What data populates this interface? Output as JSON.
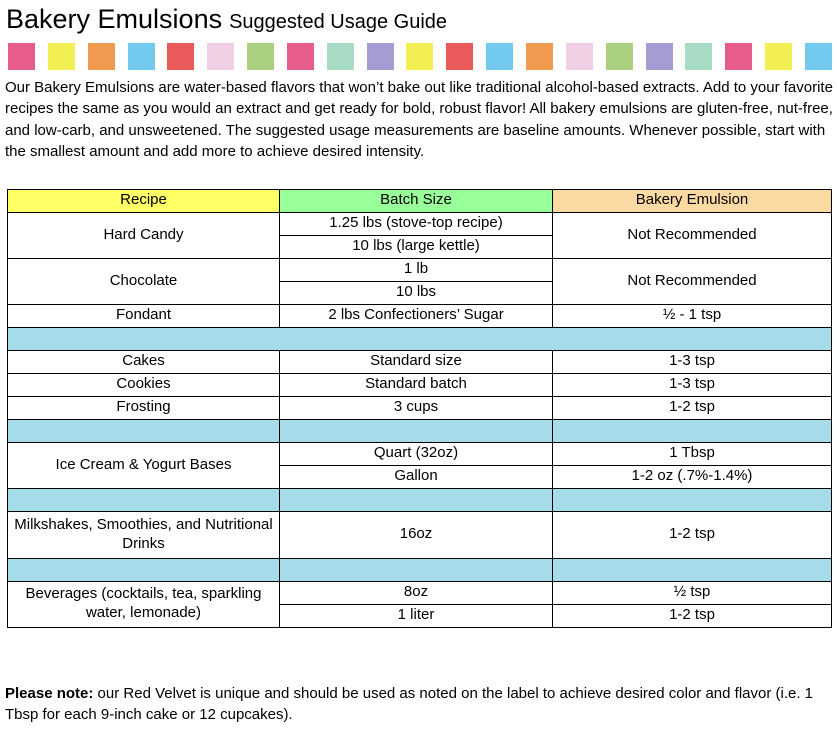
{
  "title": {
    "main": "Bakery Emulsions",
    "sub": "Suggested Usage Guide"
  },
  "stripe": {
    "colors": [
      "#E85C8C",
      "#F2EF55",
      "#F09A50",
      "#74CAEE",
      "#EB5A5B",
      "#F0D0E4",
      "#ABD080",
      "#E85C8C",
      "#A9DCC5",
      "#A49CD2",
      "#F2EF55",
      "#EB5A5B",
      "#74CAEE",
      "#F09A50",
      "#F0D0E4",
      "#ABD080",
      "#A49CD2",
      "#A9DCC5",
      "#E85C8C",
      "#F2EF55",
      "#74CAEE"
    ]
  },
  "intro": "Our Bakery Emulsions are water-based flavors that won’t bake out like traditional alcohol-based extracts. Add to your favorite recipes the same as you would an extract and get ready for bold, robust flavor! All bakery emulsions are gluten-free, nut-free, and low-carb, and unsweetened. The suggested usage measurements are baseline amounts. Whenever possible, start with the smallest amount and add more to achieve desired intensity.",
  "table": {
    "headers": [
      "Recipe",
      "Batch Size",
      "Bakery Emulsion"
    ],
    "header_colors": [
      "#FFFF66",
      "#99FF99",
      "#FBD9A3"
    ],
    "separator_color": "#A6DBEA",
    "rows": {
      "hard_candy": {
        "recipe": "Hard Candy",
        "batch1": "1.25 lbs (stove-top recipe)",
        "batch2": "10 lbs (large kettle)",
        "emulsion": "Not Recommended"
      },
      "chocolate": {
        "recipe": "Chocolate",
        "batch1": "1 lb",
        "batch2": "10 lbs",
        "emulsion": "Not Recommended"
      },
      "fondant": {
        "recipe": "Fondant",
        "batch": "2 lbs Confectioners’ Sugar",
        "emulsion": "½ - 1 tsp"
      },
      "cakes": {
        "recipe": "Cakes",
        "batch": "Standard size",
        "emulsion": "1-3 tsp"
      },
      "cookies": {
        "recipe": "Cookies",
        "batch": "Standard batch",
        "emulsion": "1-3 tsp"
      },
      "frosting": {
        "recipe": "Frosting",
        "batch": "3 cups",
        "emulsion": "1-2 tsp"
      },
      "ice_cream": {
        "recipe": "Ice Cream & Yogurt Bases",
        "batch1": "Quart (32oz)",
        "emulsion1": "1 Tbsp",
        "batch2": "Gallon",
        "emulsion2": "1-2 oz (.7%-1.4%)"
      },
      "milkshakes": {
        "recipe": "Milkshakes, Smoothies, and Nutritional Drinks",
        "batch": "16oz",
        "emulsion": "1-2 tsp"
      },
      "beverages": {
        "recipe": "Beverages (cocktails, tea, sparkling water, lemonade)",
        "batch1": "8oz",
        "emulsion1": "½ tsp",
        "batch2": "1 liter",
        "emulsion2": "1-2 tsp"
      }
    }
  },
  "note": {
    "label": "Please note:",
    "text": " our Red Velvet is unique and should be used as noted on the label to achieve desired color and flavor (i.e. 1 Tbsp for each 9-inch cake or 12 cupcakes)."
  }
}
